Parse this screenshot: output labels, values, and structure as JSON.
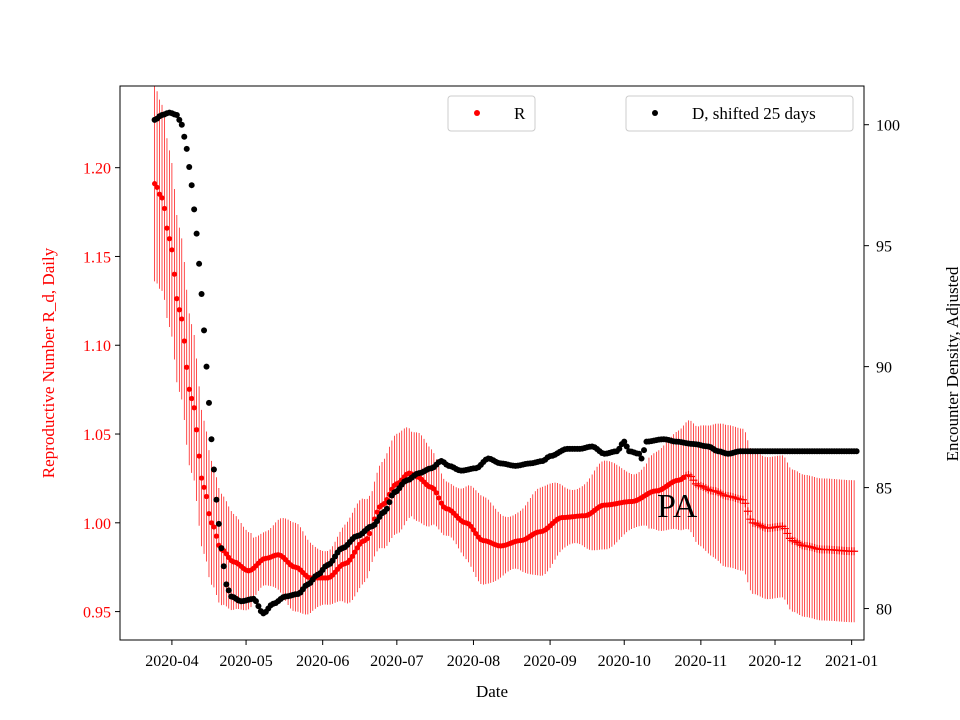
{
  "chart_data": {
    "type": "scatter",
    "xlabel": "Date",
    "ylabel_left": "Reproductive Number R_d, Daily",
    "ylabel_right": "Encounter Density, Adjusted",
    "annotation": "PA",
    "x_start": "2020-03-25",
    "x_end": "2020-12-31",
    "xlim_days": [
      -14,
      287
    ],
    "x_ticks": [
      {
        "label": "2020-04",
        "day": 7
      },
      {
        "label": "2020-05",
        "day": 37
      },
      {
        "label": "2020-06",
        "day": 68
      },
      {
        "label": "2020-07",
        "day": 98
      },
      {
        "label": "2020-08",
        "day": 129
      },
      {
        "label": "2020-09",
        "day": 160
      },
      {
        "label": "2020-10",
        "day": 190
      },
      {
        "label": "2020-11",
        "day": 221
      },
      {
        "label": "2020-12",
        "day": 251
      },
      {
        "label": "2021-01",
        "day": 282
      }
    ],
    "y_left": {
      "ylim": [
        0.934,
        1.246
      ],
      "ticks": [
        0.95,
        1.0,
        1.05,
        1.1,
        1.15,
        1.2
      ],
      "tick_labels": [
        "0.95",
        "1.00",
        "1.05",
        "1.10",
        "1.15",
        "1.20"
      ],
      "color": "#ff0000"
    },
    "y_right": {
      "ylim": [
        78.7,
        101.6
      ],
      "ticks": [
        80,
        85,
        90,
        95,
        100
      ],
      "tick_labels": [
        "80",
        "85",
        "90",
        "95",
        "100"
      ],
      "color": "#000000"
    },
    "series": [
      {
        "name": "R",
        "axis": "left",
        "color": "#ff0000",
        "marker": "dot",
        "style_change_day": 215,
        "error_band_width": [
          0.055,
          0.02,
          0.04
        ],
        "keypoints": [
          [
            0,
            1.191
          ],
          [
            3,
            1.183
          ],
          [
            6,
            1.16
          ],
          [
            10,
            1.12
          ],
          [
            15,
            1.07
          ],
          [
            20,
            1.02
          ],
          [
            23,
            1.0
          ],
          [
            27,
            0.985
          ],
          [
            32,
            0.978
          ],
          [
            38,
            0.973
          ],
          [
            45,
            0.98
          ],
          [
            50,
            0.982
          ],
          [
            57,
            0.975
          ],
          [
            63,
            0.969
          ],
          [
            70,
            0.969
          ],
          [
            77,
            0.977
          ],
          [
            85,
            0.99
          ],
          [
            92,
            1.01
          ],
          [
            98,
            1.022
          ],
          [
            103,
            1.028
          ],
          [
            106,
            1.026
          ],
          [
            112,
            1.02
          ],
          [
            118,
            1.008
          ],
          [
            126,
            1.0
          ],
          [
            133,
            0.99
          ],
          [
            140,
            0.987
          ],
          [
            148,
            0.99
          ],
          [
            156,
            0.995
          ],
          [
            165,
            1.003
          ],
          [
            174,
            1.004
          ],
          [
            182,
            1.01
          ],
          [
            193,
            1.012
          ],
          [
            203,
            1.018
          ],
          [
            212,
            1.024
          ],
          [
            216,
            1.027
          ],
          [
            220,
            1.021
          ],
          [
            226,
            1.018
          ],
          [
            232,
            1.015
          ],
          [
            238,
            1.013
          ],
          [
            242,
            1.0
          ],
          [
            248,
            0.997
          ],
          [
            254,
            0.998
          ],
          [
            258,
            0.99
          ],
          [
            263,
            0.987
          ],
          [
            270,
            0.985
          ],
          [
            283,
            0.984
          ]
        ]
      },
      {
        "name": "D, shifted 25 days",
        "axis": "right",
        "color": "#000000",
        "marker": "dot",
        "keypoints": [
          [
            0,
            100.2
          ],
          [
            3,
            100.4
          ],
          [
            6,
            100.5
          ],
          [
            9,
            100.4
          ],
          [
            11,
            100.0
          ],
          [
            13,
            99.0
          ],
          [
            15,
            97.5
          ],
          [
            17,
            95.5
          ],
          [
            19,
            93.0
          ],
          [
            21,
            90.0
          ],
          [
            23,
            87.0
          ],
          [
            25,
            84.5
          ],
          [
            27,
            82.5
          ],
          [
            29,
            81.0
          ],
          [
            31,
            80.5
          ],
          [
            35,
            80.3
          ],
          [
            40,
            80.4
          ],
          [
            44,
            79.8
          ],
          [
            48,
            80.2
          ],
          [
            53,
            80.5
          ],
          [
            58,
            80.6
          ],
          [
            62,
            81.0
          ],
          [
            66,
            81.4
          ],
          [
            70,
            81.8
          ],
          [
            76,
            82.5
          ],
          [
            82,
            83.0
          ],
          [
            88,
            83.4
          ],
          [
            93,
            84.0
          ],
          [
            97,
            84.8
          ],
          [
            102,
            85.3
          ],
          [
            107,
            85.6
          ],
          [
            112,
            85.8
          ],
          [
            116,
            86.1
          ],
          [
            119,
            85.9
          ],
          [
            124,
            85.7
          ],
          [
            130,
            85.8
          ],
          [
            135,
            86.2
          ],
          [
            140,
            86.0
          ],
          [
            146,
            85.9
          ],
          [
            152,
            86.0
          ],
          [
            157,
            86.1
          ],
          [
            160,
            86.3
          ],
          [
            167,
            86.6
          ],
          [
            172,
            86.6
          ],
          [
            177,
            86.7
          ],
          [
            182,
            86.4
          ],
          [
            187,
            86.5
          ],
          [
            190,
            86.9
          ],
          [
            192,
            86.5
          ],
          [
            196,
            86.4
          ],
          [
            197,
            86.2
          ],
          [
            199,
            86.9
          ],
          [
            206,
            87.0
          ],
          [
            211,
            86.9
          ],
          [
            218,
            86.8
          ],
          [
            224,
            86.7
          ],
          [
            228,
            86.5
          ],
          [
            232,
            86.4
          ],
          [
            237,
            86.5
          ],
          [
            245,
            86.5
          ],
          [
            284,
            86.5
          ]
        ]
      }
    ],
    "legend": [
      {
        "label": "R",
        "color": "#ff0000",
        "placement": "top-center"
      },
      {
        "label": "D, shifted 25 days",
        "color": "#000000",
        "placement": "top-right"
      }
    ]
  }
}
